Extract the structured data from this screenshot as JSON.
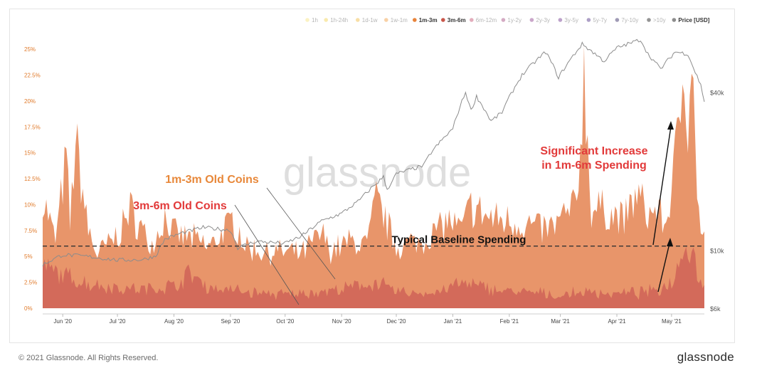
{
  "chart_data": {
    "type": "area",
    "watermark": "glassnode",
    "legend": {
      "placement": "top-right",
      "items": [
        {
          "label": "1h",
          "color": "#f6e27a",
          "active": false
        },
        {
          "label": "1h-24h",
          "color": "#f2d04a",
          "active": false
        },
        {
          "label": "1d-1w",
          "color": "#f0b83a",
          "active": false
        },
        {
          "label": "1w-1m",
          "color": "#ef9a3a",
          "active": false
        },
        {
          "label": "1m-3m",
          "color": "#e8833a",
          "active": true
        },
        {
          "label": "3m-6m",
          "color": "#c8564a",
          "active": true
        },
        {
          "label": "6m-12m",
          "color": "#c24a6a",
          "active": false
        },
        {
          "label": "1y-2y",
          "color": "#a0437a",
          "active": false
        },
        {
          "label": "2y-3y",
          "color": "#8a3a8a",
          "active": false
        },
        {
          "label": "3y-5y",
          "color": "#6a2f8a",
          "active": false
        },
        {
          "label": "5y-7y",
          "color": "#4a2a80",
          "active": false
        },
        {
          "label": "7y-10y",
          "color": "#2a1f5a",
          "active": false
        },
        {
          "label": ">10y",
          "color": "#111111",
          "active": false
        },
        {
          "label": "Price [USD]",
          "color": "#8c8c8c",
          "active": true
        }
      ]
    },
    "y_left": {
      "ticks": [
        "0%",
        "2.5%",
        "5%",
        "7.5%",
        "10%",
        "12.5%",
        "15%",
        "17.5%",
        "20%",
        "22.5%",
        "25%"
      ],
      "lim": [
        0,
        27
      ]
    },
    "y_right": {
      "scale": "log",
      "ticks": [
        "$6k",
        "$10k",
        "$40k"
      ],
      "tick_values": [
        6000,
        10000,
        40000
      ],
      "lim": [
        6000,
        70000
      ]
    },
    "x_ticks": [
      "Jun '20",
      "Jul '20",
      "Aug '20",
      "Sep '20",
      "Oct '20",
      "Nov '20",
      "Dec '20",
      "Jan '21",
      "Feb '21",
      "Mar '21",
      "Apr '21",
      "May '21"
    ],
    "x_tick_dates": [
      "2020-06-01",
      "2020-07-01",
      "2020-08-01",
      "2020-09-01",
      "2020-10-01",
      "2020-11-01",
      "2020-12-01",
      "2021-01-01",
      "2021-02-01",
      "2021-03-01",
      "2021-04-01",
      "2021-05-01"
    ],
    "x_range": [
      "2020-05-21",
      "2021-05-19"
    ],
    "series": [
      {
        "name": "1m-3m",
        "color": "#e8956a",
        "unit": "% of daily volume (stacked total)",
        "points": [
          [
            "2020-05-21",
            10.8
          ],
          [
            "2020-05-28",
            6.5
          ],
          [
            "2020-06-03",
            14.5
          ],
          [
            "2020-06-05",
            8
          ],
          [
            "2020-06-08",
            16.3
          ],
          [
            "2020-06-15",
            7.5
          ],
          [
            "2020-06-20",
            5.2
          ],
          [
            "2020-07-01",
            7
          ],
          [
            "2020-07-08",
            9.5
          ],
          [
            "2020-07-20",
            6
          ],
          [
            "2020-07-27",
            8.8
          ],
          [
            "2020-08-02",
            7
          ],
          [
            "2020-08-10",
            6.8
          ],
          [
            "2020-08-20",
            5.9
          ],
          [
            "2020-09-03",
            8.5
          ],
          [
            "2020-09-10",
            5.8
          ],
          [
            "2020-09-20",
            5.5
          ],
          [
            "2020-10-01",
            5.4
          ],
          [
            "2020-10-10",
            5.2
          ],
          [
            "2020-10-21",
            7.2
          ],
          [
            "2020-10-26",
            5.6
          ],
          [
            "2020-11-05",
            6.4
          ],
          [
            "2020-11-15",
            6.2
          ],
          [
            "2020-11-20",
            10.5
          ],
          [
            "2020-11-25",
            8.5
          ],
          [
            "2020-12-01",
            6
          ],
          [
            "2020-12-15",
            6.5
          ],
          [
            "2020-12-30",
            8.5
          ],
          [
            "2021-01-05",
            7.4
          ],
          [
            "2021-01-11",
            9.8
          ],
          [
            "2021-01-21",
            8.7
          ],
          [
            "2021-01-30",
            8.5
          ],
          [
            "2021-02-08",
            8.2
          ],
          [
            "2021-02-20",
            7.6
          ],
          [
            "2021-02-25",
            7.8
          ],
          [
            "2021-03-10",
            10
          ],
          [
            "2021-03-14",
            22.5
          ],
          [
            "2021-03-18",
            9.5
          ],
          [
            "2021-03-25",
            9.5
          ],
          [
            "2021-04-05",
            8.5
          ],
          [
            "2021-04-12",
            11
          ],
          [
            "2021-04-18",
            9
          ],
          [
            "2021-04-23",
            9.5
          ],
          [
            "2021-04-28",
            8
          ],
          [
            "2021-05-05",
            17
          ],
          [
            "2021-05-08",
            24.8
          ],
          [
            "2021-05-10",
            18
          ],
          [
            "2021-05-12",
            25.5
          ],
          [
            "2021-05-14",
            15
          ],
          [
            "2021-05-17",
            7
          ],
          [
            "2021-05-19",
            6.5
          ]
        ]
      },
      {
        "name": "3m-6m",
        "color": "#d36a5a",
        "unit": "% of daily volume",
        "points": [
          [
            "2020-05-21",
            4
          ],
          [
            "2020-06-01",
            3.2
          ],
          [
            "2020-06-15",
            2.4
          ],
          [
            "2020-07-01",
            2
          ],
          [
            "2020-07-15",
            1.8
          ],
          [
            "2020-08-01",
            2.2
          ],
          [
            "2020-08-10",
            3.4
          ],
          [
            "2020-08-20",
            2
          ],
          [
            "2020-09-01",
            1.8
          ],
          [
            "2020-09-15",
            1.5
          ],
          [
            "2020-10-01",
            1.3
          ],
          [
            "2020-10-15",
            1.5
          ],
          [
            "2020-11-01",
            1.8
          ],
          [
            "2020-11-20",
            2.5
          ],
          [
            "2020-12-01",
            1.6
          ],
          [
            "2020-12-20",
            1.4
          ],
          [
            "2021-01-05",
            2.4
          ],
          [
            "2021-01-20",
            2
          ],
          [
            "2021-02-01",
            1.6
          ],
          [
            "2021-02-15",
            1.5
          ],
          [
            "2021-03-01",
            1.2
          ],
          [
            "2021-03-15",
            1.6
          ],
          [
            "2021-04-01",
            1.4
          ],
          [
            "2021-04-15",
            1.5
          ],
          [
            "2021-04-25",
            1.8
          ],
          [
            "2021-05-03",
            3
          ],
          [
            "2021-05-08",
            7.2
          ],
          [
            "2021-05-10",
            4.5
          ],
          [
            "2021-05-12",
            6.5
          ],
          [
            "2021-05-15",
            3.5
          ],
          [
            "2021-05-19",
            2
          ]
        ]
      },
      {
        "name": "Price [USD]",
        "color": "#8c8c8c",
        "axis": "right",
        "points": [
          [
            "2020-05-21",
            8800
          ],
          [
            "2020-06-01",
            9600
          ],
          [
            "2020-06-15",
            9450
          ],
          [
            "2020-07-01",
            9150
          ],
          [
            "2020-07-15",
            9200
          ],
          [
            "2020-07-22",
            9500
          ],
          [
            "2020-07-27",
            11000
          ],
          [
            "2020-08-05",
            11600
          ],
          [
            "2020-08-17",
            12200
          ],
          [
            "2020-09-01",
            11900
          ],
          [
            "2020-09-05",
            10200
          ],
          [
            "2020-09-15",
            10800
          ],
          [
            "2020-10-01",
            10600
          ],
          [
            "2020-10-10",
            11300
          ],
          [
            "2020-10-21",
            12900
          ],
          [
            "2020-11-01",
            13800
          ],
          [
            "2020-11-10",
            15300
          ],
          [
            "2020-11-24",
            19000
          ],
          [
            "2020-11-26",
            17000
          ],
          [
            "2020-12-01",
            19500
          ],
          [
            "2020-12-16",
            21000
          ],
          [
            "2020-12-20",
            23500
          ],
          [
            "2021-01-01",
            29000
          ],
          [
            "2021-01-08",
            40000
          ],
          [
            "2021-01-11",
            34000
          ],
          [
            "2021-01-14",
            38500
          ],
          [
            "2021-01-22",
            31000
          ],
          [
            "2021-01-28",
            33500
          ],
          [
            "2021-02-08",
            46500
          ],
          [
            "2021-02-21",
            57000
          ],
          [
            "2021-02-28",
            45500
          ],
          [
            "2021-03-13",
            61000
          ],
          [
            "2021-03-25",
            52500
          ],
          [
            "2021-04-01",
            59000
          ],
          [
            "2021-04-14",
            63500
          ],
          [
            "2021-04-18",
            56000
          ],
          [
            "2021-04-25",
            49000
          ],
          [
            "2021-05-03",
            57000
          ],
          [
            "2021-05-10",
            56000
          ],
          [
            "2021-05-13",
            49500
          ],
          [
            "2021-05-17",
            42500
          ],
          [
            "2021-05-19",
            37000
          ]
        ]
      }
    ],
    "baseline": {
      "label": "Typical Baseline Spending",
      "value": 6
    },
    "annotations": [
      {
        "text": "1m-3m Old Coins",
        "color": "#e8883a",
        "points_to": "1m-3m"
      },
      {
        "text": "3m-6m Old Coins",
        "color": "#e23a3a",
        "points_to": "3m-6m"
      },
      {
        "text": "Significant Increase",
        "color": "#e23a3a"
      },
      {
        "text": "in 1m-6m Spending",
        "color": "#e23a3a"
      }
    ]
  },
  "footer": {
    "copyright": "© 2021 Glassnode. All Rights Reserved.",
    "brand": "glassnode"
  }
}
